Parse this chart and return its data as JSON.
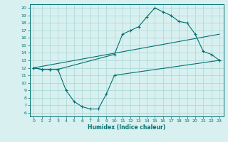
{
  "line1_x": [
    0,
    1,
    2,
    3,
    4,
    5,
    6,
    7,
    8,
    9,
    10,
    23
  ],
  "line1_y": [
    12,
    11.8,
    11.8,
    11.8,
    9.0,
    7.5,
    6.8,
    6.5,
    6.5,
    8.5,
    11.0,
    13.0
  ],
  "line2_x": [
    0,
    1,
    2,
    3,
    10,
    11,
    12,
    13,
    14,
    15,
    16,
    17,
    18,
    19,
    20,
    21,
    22,
    23
  ],
  "line2_y": [
    12,
    11.8,
    11.8,
    11.8,
    13.8,
    16.5,
    17.0,
    17.5,
    18.8,
    20.0,
    19.5,
    19.0,
    18.2,
    18.0,
    16.5,
    14.2,
    13.8,
    13.0
  ],
  "line3_x": [
    0,
    23
  ],
  "line3_y": [
    12,
    16.5
  ],
  "color": "#007070",
  "bg_color": "#d8f0f0",
  "grid_color": "#b0dada",
  "xlim": [
    -0.5,
    23.5
  ],
  "ylim": [
    5.5,
    20.5
  ],
  "yticks": [
    6,
    7,
    8,
    9,
    10,
    11,
    12,
    13,
    14,
    15,
    16,
    17,
    18,
    19,
    20
  ],
  "xticks": [
    0,
    1,
    2,
    3,
    4,
    5,
    6,
    7,
    8,
    9,
    10,
    11,
    12,
    13,
    14,
    15,
    16,
    17,
    18,
    19,
    20,
    21,
    22,
    23
  ],
  "xlabel": "Humidex (Indice chaleur)"
}
